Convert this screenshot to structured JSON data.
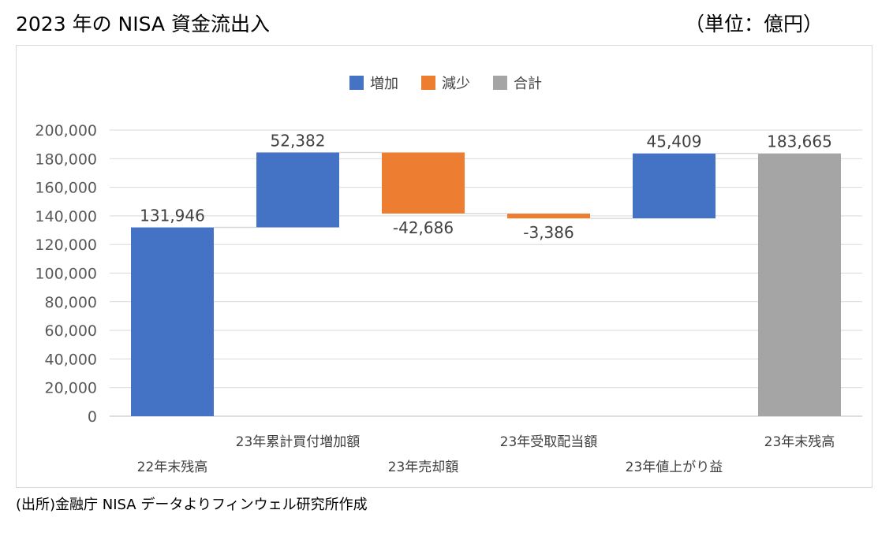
{
  "title": "2023 年の NISA 資金流出入",
  "unit_label": "（単位：億円）",
  "source_note": "(出所)金融庁 NISA データよりフィンウェル研究所作成",
  "legend": [
    {
      "label": "増加",
      "color": "#4472C4"
    },
    {
      "label": "減少",
      "color": "#ED7D31"
    },
    {
      "label": "合計",
      "color": "#A5A5A5"
    }
  ],
  "chart_data": {
    "type": "waterfall",
    "title": "2023 年の NISA 資金流出入",
    "ylim": [
      0,
      200000
    ],
    "yticks": [
      "0",
      "20,000",
      "40,000",
      "60,000",
      "80,000",
      "100,000",
      "120,000",
      "140,000",
      "160,000",
      "180,000",
      "200,000"
    ],
    "grid": true,
    "legend_position": "top",
    "categories": [
      "22年末残高",
      "23年累計買付増加額",
      "23年売却額",
      "23年受取配当額",
      "23年値上がり益",
      "23年末残高"
    ],
    "values": [
      131946,
      52382,
      -42686,
      -3386,
      45409,
      183665
    ],
    "value_labels": [
      "131,946",
      "52,382",
      "-42,686",
      "-3,386",
      "45,409",
      "183,665"
    ],
    "kinds": [
      "increase",
      "increase",
      "decrease",
      "decrease",
      "increase",
      "total"
    ],
    "colors": {
      "increase": "#4472C4",
      "decrease": "#ED7D31",
      "total": "#A5A5A5"
    }
  }
}
